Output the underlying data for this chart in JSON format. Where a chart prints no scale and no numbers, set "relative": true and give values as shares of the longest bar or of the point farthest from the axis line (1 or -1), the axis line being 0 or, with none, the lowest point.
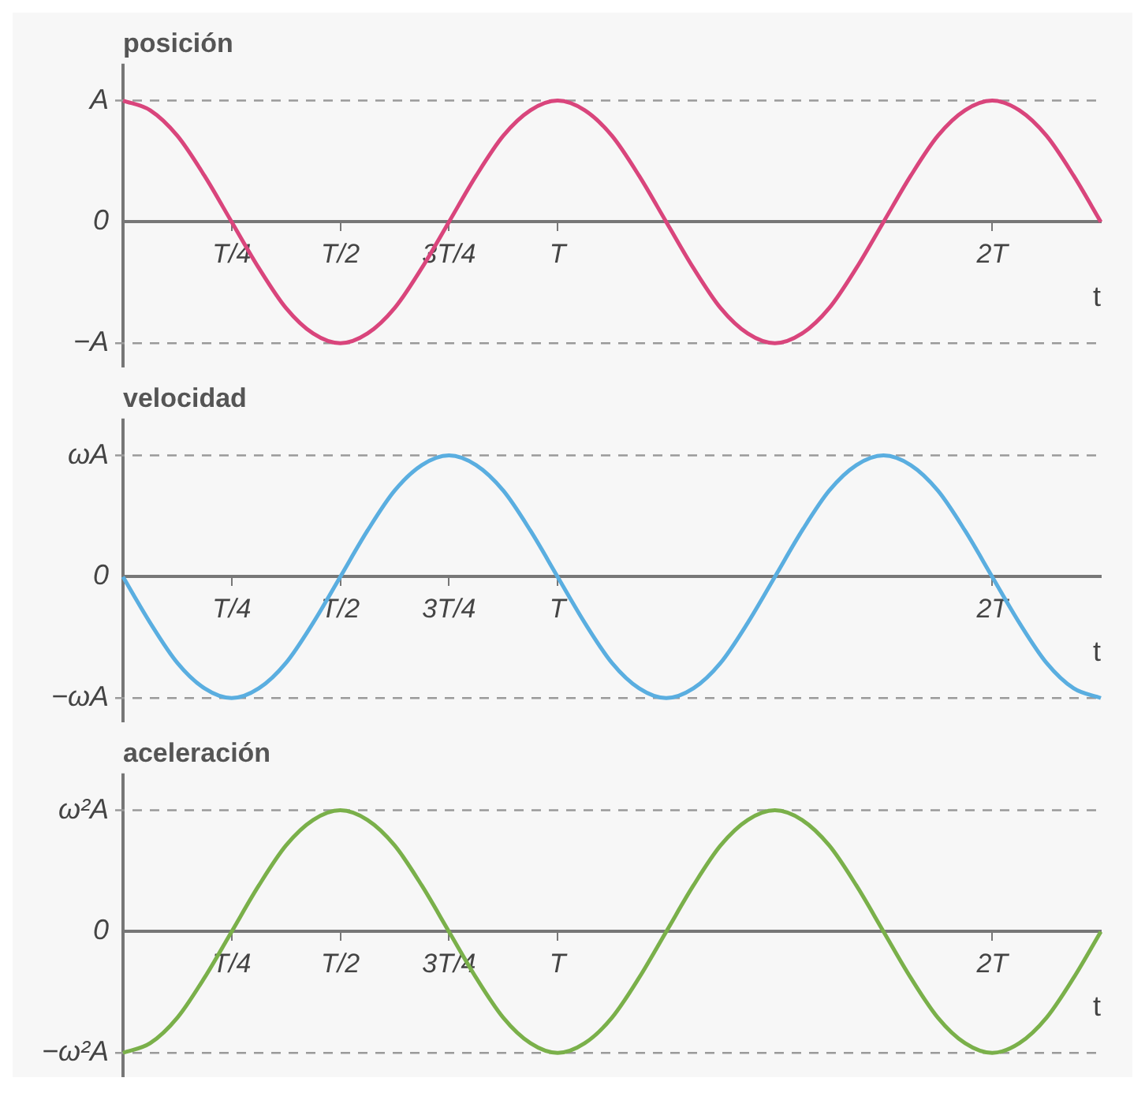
{
  "chart_data": [
    {
      "type": "line",
      "title": "posición",
      "xlabel": "t",
      "relative": true,
      "categories": [
        null,
        null,
        null,
        null,
        "T/4",
        null,
        null,
        null,
        "T/2",
        null,
        null,
        null,
        "3T/4",
        null,
        null,
        null,
        "T",
        null,
        null,
        null,
        null,
        null,
        null,
        null,
        null,
        null,
        null,
        null,
        null,
        null,
        null,
        null,
        "2T",
        null,
        null,
        null,
        null
      ],
      "series": [
        {
          "color": "#d9457c",
          "values": [
            1,
            0.92,
            0.71,
            0.38,
            0,
            -0.38,
            -0.71,
            -0.92,
            -1,
            -0.92,
            -0.71,
            -0.38,
            0,
            0.38,
            0.71,
            0.92,
            1,
            0.92,
            0.71,
            0.38,
            0,
            -0.38,
            -0.71,
            -0.92,
            -1,
            -0.92,
            -0.71,
            -0.38,
            0,
            0.38,
            0.71,
            0.92,
            1,
            0.92,
            0.71,
            0.38,
            0
          ]
        }
      ],
      "annotations": [
        "0"
      ],
      "ref_lines": [
        {
          "axis": "y",
          "value": 1,
          "label": "A",
          "line_style": "dashed"
        },
        {
          "axis": "y",
          "value": -1,
          "label": "−A",
          "line_style": "dashed"
        }
      ],
      "marker": "none"
    },
    {
      "type": "line",
      "title": "velocidad",
      "xlabel": "t",
      "relative": true,
      "categories": [
        null,
        null,
        null,
        null,
        "T/4",
        null,
        null,
        null,
        "T/2",
        null,
        null,
        null,
        "3T/4",
        null,
        null,
        null,
        "T",
        null,
        null,
        null,
        null,
        null,
        null,
        null,
        null,
        null,
        null,
        null,
        null,
        null,
        null,
        null,
        "2T",
        null,
        null,
        null,
        null
      ],
      "series": [
        {
          "color": "#5aaee0",
          "values": [
            0,
            -0.38,
            -0.71,
            -0.92,
            -1,
            -0.92,
            -0.71,
            -0.38,
            0,
            0.38,
            0.71,
            0.92,
            1,
            0.92,
            0.71,
            0.38,
            0,
            -0.38,
            -0.71,
            -0.92,
            -1,
            -0.92,
            -0.71,
            -0.38,
            0,
            0.38,
            0.71,
            0.92,
            1,
            0.92,
            0.71,
            0.38,
            0,
            -0.38,
            -0.71,
            -0.92,
            -1
          ]
        }
      ],
      "annotations": [
        "0"
      ],
      "ref_lines": [
        {
          "axis": "y",
          "value": 1,
          "label": "ωA",
          "line_style": "dashed"
        },
        {
          "axis": "y",
          "value": -1,
          "label": "−ωA",
          "line_style": "dashed"
        }
      ],
      "marker": "none"
    },
    {
      "type": "line",
      "title": "aceleración",
      "xlabel": "t",
      "relative": true,
      "categories": [
        null,
        null,
        null,
        null,
        "T/4",
        null,
        null,
        null,
        "T/2",
        null,
        null,
        null,
        "3T/4",
        null,
        null,
        null,
        "T",
        null,
        null,
        null,
        null,
        null,
        null,
        null,
        null,
        null,
        null,
        null,
        null,
        null,
        null,
        null,
        "2T",
        null,
        null,
        null,
        null
      ],
      "series": [
        {
          "color": "#7ab04a",
          "values": [
            -1,
            -0.92,
            -0.71,
            -0.38,
            0,
            0.38,
            0.71,
            0.92,
            1,
            0.92,
            0.71,
            0.38,
            0,
            -0.38,
            -0.71,
            -0.92,
            -1,
            -0.92,
            -0.71,
            -0.38,
            0,
            0.38,
            0.71,
            0.92,
            1,
            0.92,
            0.71,
            0.38,
            0,
            -0.38,
            -0.71,
            -0.92,
            -1,
            -0.92,
            -0.71,
            -0.38,
            0
          ]
        }
      ],
      "annotations": [
        "0"
      ],
      "ref_lines": [
        {
          "axis": "y",
          "value": 1,
          "label": "ω²A",
          "line_style": "dashed"
        },
        {
          "axis": "y",
          "value": -1,
          "label": "−ω²A",
          "line_style": "dashed"
        }
      ],
      "marker": "none"
    }
  ]
}
